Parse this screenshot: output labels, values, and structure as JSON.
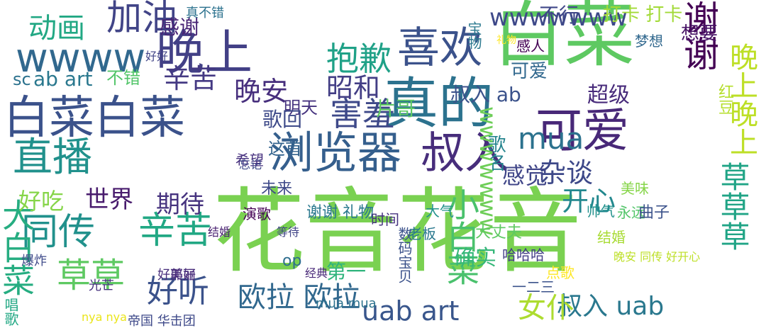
{
  "words": [
    {
      "text": "花音花音",
      "color": "#7ad151"
    },
    {
      "text": "白菜白菜",
      "color": "#3b528b"
    },
    {
      "text": "白菜",
      "color": "#5ec962"
    },
    {
      "text": "真的",
      "color": "#2c728e"
    },
    {
      "text": "浏览器",
      "color": "#355f8d"
    },
    {
      "text": "直播",
      "color": "#21918c"
    },
    {
      "text": "可爱",
      "color": "#482878"
    },
    {
      "text": "叔入",
      "color": "#472d7b"
    },
    {
      "text": "谢谢",
      "color": "#440154"
    },
    {
      "text": "晚上",
      "color": "#424086"
    },
    {
      "text": "喜欢",
      "color": "#3b528b"
    },
    {
      "text": "wwww",
      "color": "#31688e"
    },
    {
      "text": "草草",
      "color": "#5ec962"
    },
    {
      "text": "同传",
      "color": "#21918c"
    },
    {
      "text": "辛苦",
      "color": "#22a884"
    },
    {
      "text": "大白菜",
      "color": "#26ad81"
    },
    {
      "text": "草草草",
      "color": "#20a486"
    },
    {
      "text": "晚上晚上",
      "color": "#bddf26"
    },
    {
      "text": "欧拉 欧拉",
      "color": "#31688e"
    },
    {
      "text": "加油",
      "color": "#414487"
    },
    {
      "text": "抱歉",
      "color": "#1fa187"
    },
    {
      "text": "动画",
      "color": "#22a884"
    },
    {
      "text": "害羞",
      "color": "#3e4989"
    },
    {
      "text": "好听",
      "color": "#3b528b"
    },
    {
      "text": "uab art",
      "color": "#39568c"
    },
    {
      "text": "叔入 uab",
      "color": "#2a788e"
    },
    {
      "text": "mua",
      "color": "#2c728e"
    },
    {
      "text": "女仆",
      "color": "#addc30"
    },
    {
      "text": "小白菜",
      "color": "#4ac16d"
    },
    {
      "text": "杂谈",
      "color": "#3e4989"
    },
    {
      "text": "开心",
      "color": "#23888e"
    },
    {
      "text": "感觉",
      "color": "#404688"
    },
    {
      "text": "昭和",
      "color": "#433e85"
    },
    {
      "text": "辛苦",
      "color": "#443983"
    },
    {
      "text": "晚安",
      "color": "#472f7d"
    },
    {
      "text": "世界",
      "color": "#481b6d"
    },
    {
      "text": "期待",
      "color": "#46337f"
    },
    {
      "text": "好吃",
      "color": "#86d549"
    },
    {
      "text": "wwwwwww",
      "color": "#3e4989"
    },
    {
      "text": "打卡 打卡",
      "color": "#a2da37"
    },
    {
      "text": "想要",
      "color": "#481467"
    },
    {
      "text": "不行",
      "color": "#3f4788"
    },
    {
      "text": "感谢",
      "color": "#482475"
    },
    {
      "text": "ab art",
      "color": "#2a788e"
    },
    {
      "text": "不错",
      "color": "#52c569"
    },
    {
      "text": "sc",
      "color": "#2c728e"
    },
    {
      "text": "明天",
      "color": "#46337f"
    },
    {
      "text": "片哥",
      "color": "#5ec962"
    },
    {
      "text": "歌回",
      "color": "#3e4a89"
    },
    {
      "text": "叔入 ab",
      "color": "#3b528b"
    },
    {
      "text": "超级",
      "color": "#472a7a"
    },
    {
      "text": "歌名",
      "color": "#25848e"
    },
    {
      "text": "这首",
      "color": "#33638d"
    },
    {
      "text": "可爱",
      "color": "#31688e"
    },
    {
      "text": "感人",
      "color": "#440154"
    },
    {
      "text": "wwwwwww",
      "color": "#6ece58"
    },
    {
      "text": "红豆",
      "color": "#b5de2b"
    },
    {
      "text": "希望",
      "color": "#46307e"
    },
    {
      "text": "大丈夫",
      "color": "#5ec962"
    },
    {
      "text": "老板",
      "color": "#2a788e"
    },
    {
      "text": "大气",
      "color": "#21918c"
    },
    {
      "text": "谢谢 礼物",
      "color": "#2a788e"
    },
    {
      "text": "永远",
      "color": "#52c569"
    },
    {
      "text": "美味",
      "color": "#86d549"
    },
    {
      "text": "结婚",
      "color": "#a8db34"
    },
    {
      "text": "未来",
      "color": "#3e4989"
    },
    {
      "text": "演歌",
      "color": "#440154"
    },
    {
      "text": "帅气",
      "color": "#21918c"
    },
    {
      "text": "曲子",
      "color": "#3b528b"
    },
    {
      "text": "时间",
      "color": "#46337f"
    },
    {
      "text": "op",
      "color": "#2e6e8e"
    },
    {
      "text": "哈哈哈",
      "color": "#433e85"
    },
    {
      "text": "第一",
      "color": "#2fb47c"
    },
    {
      "text": "确实",
      "color": "#35b779"
    },
    {
      "text": "一二三",
      "color": "#3b528b"
    },
    {
      "text": "点歌",
      "color": "#fde725"
    },
    {
      "text": "爆炸",
      "color": "#3e4a89"
    },
    {
      "text": "唱歌",
      "color": "#22a884"
    },
    {
      "text": "美丽",
      "color": "#482677"
    },
    {
      "text": "mua mua",
      "color": "#2c728e"
    },
    {
      "text": "晚安 同传 好开心",
      "color": "#bddf26"
    },
    {
      "text": "帝国 华击团",
      "color": "#3e4989"
    },
    {
      "text": "nya nya",
      "color": "#eae51a"
    },
    {
      "text": "好耶好",
      "color": "#472d7b"
    },
    {
      "text": "数码宝贝",
      "color": "#3b528b"
    },
    {
      "text": "经典",
      "color": "#482878"
    },
    {
      "text": "结婚",
      "color": "#481f70"
    },
    {
      "text": "光芒",
      "color": "#46327e"
    },
    {
      "text": "等待",
      "color": "#414487"
    },
    {
      "text": "宝物",
      "color": "#2a788e"
    },
    {
      "text": "梦想",
      "color": "#31688e"
    },
    {
      "text": "真不错",
      "color": "#2c728e"
    },
    {
      "text": "好好",
      "color": "#414487"
    },
    {
      "text": "忘记",
      "color": "#3e4989"
    },
    {
      "text": "礼物",
      "color": "#fde725"
    }
  ]
}
